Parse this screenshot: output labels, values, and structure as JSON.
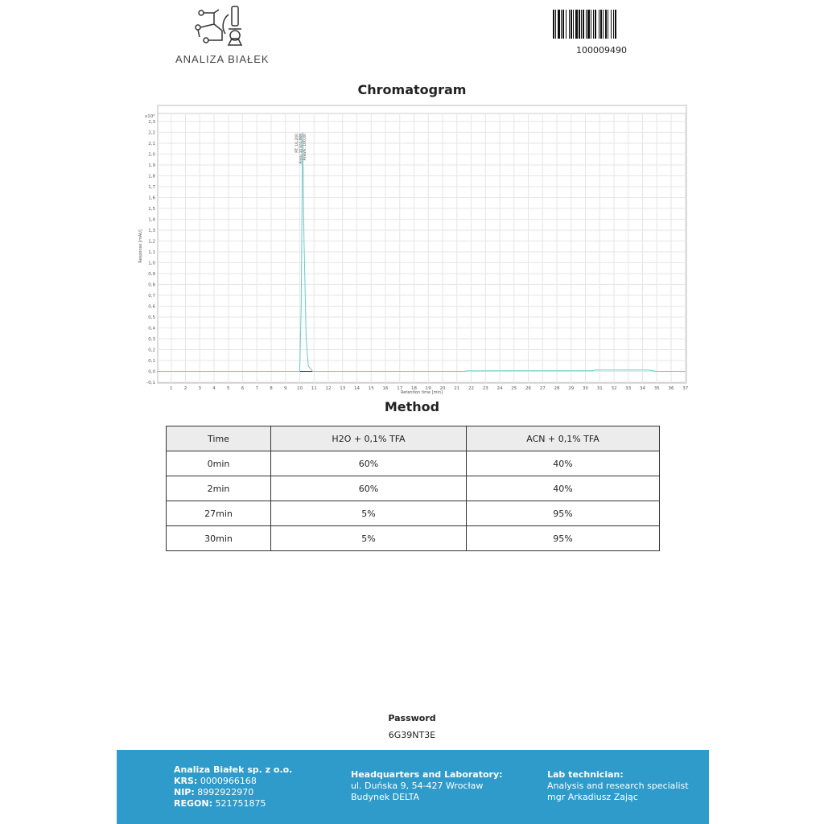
{
  "header": {
    "logo_text": "ANALIZA BIAŁEK",
    "barcode_number": "100009490"
  },
  "chart_title": "Chromatogram",
  "chart_data": {
    "type": "line",
    "xlabel": "Retention time [min]",
    "ylabel": "Response [mAU]",
    "y_multiplier": "x10³",
    "xlim": [
      0,
      37
    ],
    "ylim": [
      -0.1,
      2.3
    ],
    "x_ticks": [
      1,
      2,
      3,
      4,
      5,
      6,
      7,
      8,
      9,
      10,
      11,
      12,
      13,
      14,
      15,
      16,
      17,
      18,
      19,
      20,
      21,
      22,
      23,
      24,
      25,
      26,
      27,
      28,
      29,
      30,
      31,
      32,
      33,
      34,
      35,
      36,
      37
    ],
    "y_ticks": [
      "-0,1",
      "0,0",
      "0,1",
      "0,2",
      "0,3",
      "0,4",
      "0,5",
      "0,6",
      "0,7",
      "0,8",
      "0,9",
      "1,0",
      "1,1",
      "1,2",
      "1,3",
      "1,4",
      "1,5",
      "1,6",
      "1,7",
      "1,8",
      "1,9",
      "2,0",
      "2,1",
      "2,2",
      "2,3"
    ],
    "grid": true,
    "series_color": "#6cc9c9",
    "points": [
      [
        0,
        0
      ],
      [
        10.0,
        0
      ],
      [
        10.1,
        0.6
      ],
      [
        10.2,
        2.2
      ],
      [
        10.3,
        1.2
      ],
      [
        10.45,
        0.3
      ],
      [
        10.6,
        0.05
      ],
      [
        10.9,
        0
      ],
      [
        21.5,
        0
      ],
      [
        21.7,
        0.005
      ],
      [
        30.5,
        0.006
      ],
      [
        30.7,
        0.012
      ],
      [
        34.4,
        0.012
      ],
      [
        35,
        0
      ],
      [
        37,
        0
      ]
    ],
    "peak": {
      "rt": 10.2,
      "labels": [
        "RT: 10,200",
        "Area: 10324,888",
        "Area%: 100,00"
      ]
    }
  },
  "method": {
    "title": "Method",
    "headers": [
      "Time",
      "H2O + 0,1% TFA",
      "ACN + 0,1% TFA"
    ],
    "rows": [
      [
        "0min",
        "60%",
        "40%"
      ],
      [
        "2min",
        "60%",
        "40%"
      ],
      [
        "27min",
        "5%",
        "95%"
      ],
      [
        "30min",
        "5%",
        "95%"
      ]
    ]
  },
  "password": {
    "label": "Password",
    "value": "6G39NT3E"
  },
  "footer": {
    "company": "Analiza Białek sp. z o.o.",
    "krs_label": "KRS:",
    "krs": "0000966168",
    "nip_label": "NIP:",
    "nip": "8992922970",
    "regon_label": "REGON:",
    "regon": "521751875",
    "hq_label": "Headquarters and Laboratory:",
    "hq_line1": "ul. Duńska 9, 54-427 Wrocław",
    "hq_line2": "Budynek DELTA",
    "tech_label": "Lab technician:",
    "tech_line1": "Analysis and research specialist",
    "tech_line2": "mgr Arkadiusz Zając"
  }
}
